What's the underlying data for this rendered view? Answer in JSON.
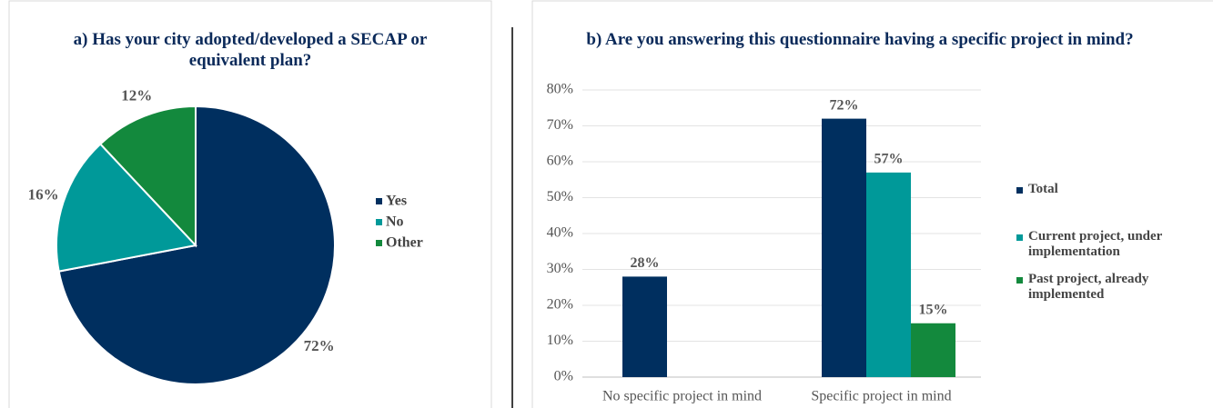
{
  "chart_data": [
    {
      "type": "pie",
      "title": "a) Has your city adopted/developed a SECAP or equivalent plan?",
      "categories": [
        "Yes",
        "No",
        "Other"
      ],
      "values": [
        72,
        16,
        12
      ],
      "value_labels": [
        "72%",
        "16%",
        "12%"
      ],
      "colors": [
        "#002f5f",
        "#009999",
        "#13893d"
      ],
      "legend": "right"
    },
    {
      "type": "bar",
      "title": "b) Are you answering this questionnaire having a specific project in mind?",
      "categories": [
        "No specific project in mind",
        "Specific project in mind"
      ],
      "series": [
        {
          "name": "Total",
          "color": "#002f5f",
          "values": [
            28,
            72
          ],
          "value_labels": [
            "28%",
            "72%"
          ]
        },
        {
          "name": "Current project, under implementation",
          "color": "#009999",
          "values": [
            null,
            57
          ],
          "value_labels": [
            null,
            "57%"
          ]
        },
        {
          "name": "Past project, already implemented",
          "color": "#13893d",
          "values": [
            null,
            15
          ],
          "value_labels": [
            null,
            "15%"
          ]
        }
      ],
      "ylim": [
        0,
        80
      ],
      "yticks": [
        {
          "value": 0,
          "label": "0%"
        },
        {
          "value": 10,
          "label": "10%"
        },
        {
          "value": 20,
          "label": "20%"
        },
        {
          "value": 30,
          "label": "30%"
        },
        {
          "value": 40,
          "label": "40%"
        },
        {
          "value": 50,
          "label": "50%"
        },
        {
          "value": 60,
          "label": "60%"
        },
        {
          "value": 70,
          "label": "70%"
        },
        {
          "value": 80,
          "label": "80%"
        }
      ],
      "grid": true,
      "legend": "right"
    }
  ]
}
